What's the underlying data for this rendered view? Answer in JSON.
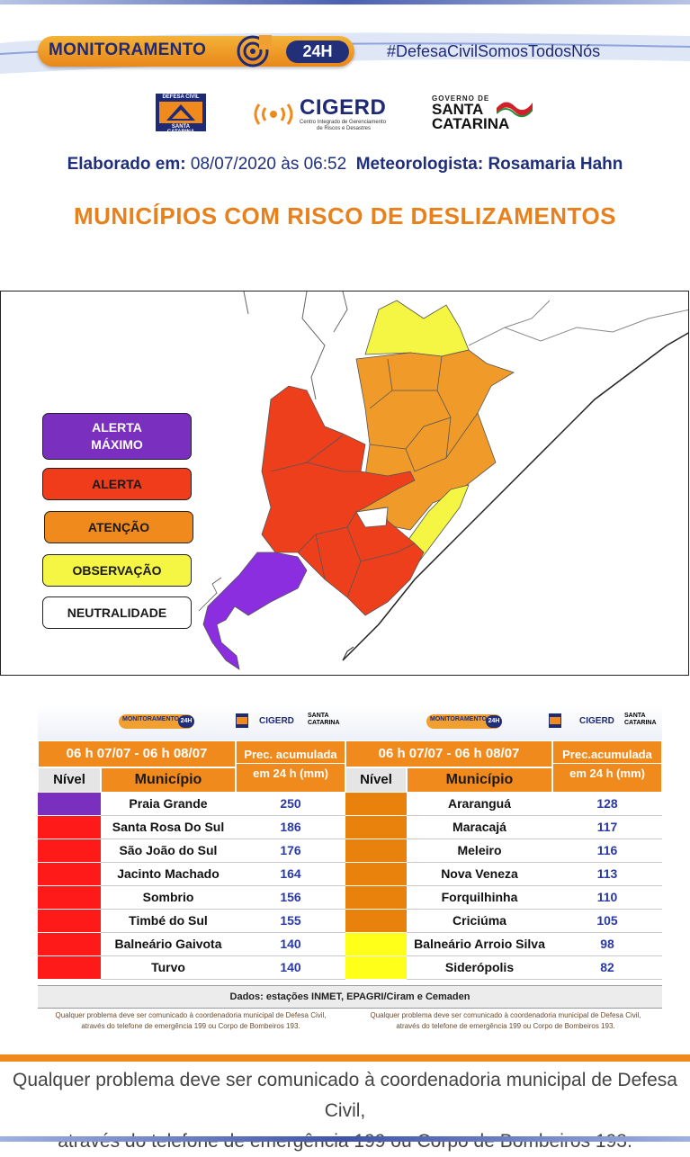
{
  "banner": {
    "monitoramento": "MONITORAMENTO",
    "hours": "24H",
    "hashtag": "#DefesaCivilSomosTodosNós"
  },
  "logos": {
    "defesa_civil_top": "DEFESA CIVIL",
    "defesa_civil_bottom": "SANTA CATARINA",
    "cigerd": "CIGERD",
    "cigerd_sub1": "Centro Integrado de Gerenciamento",
    "cigerd_sub2": "de Riscos e Desastres",
    "governo_de": "GOVERNO DE",
    "santa": "SANTA",
    "catarina": "CATARINA"
  },
  "meta": {
    "elaborado_label": "Elaborado em:",
    "elaborado_value": "08/07/2020 às 06:52",
    "meteorologista_label": "Meteorologista:",
    "meteorologista_value": "Rosamaria Hahn"
  },
  "title": "MUNICÍPIOS COM RISCO DE DESLIZAMENTOS",
  "legend": [
    {
      "line1": "ALERTA",
      "line2": "MÁXIMO",
      "color": "#7a2fbf",
      "text_color": "#ffffff"
    },
    {
      "line1": "ALERTA",
      "line2": "",
      "color": "#f03c1a",
      "text_color": "#1a1a1a"
    },
    {
      "line1": "ATENÇÃO",
      "line2": "",
      "color": "#f08a1c",
      "text_color": "#1a1a1a"
    },
    {
      "line1": "OBSERVAÇÃO",
      "line2": "",
      "color": "#f5f543",
      "text_color": "#1a1a1a"
    },
    {
      "line1": "NEUTRALIDADE",
      "line2": "",
      "color": "#ffffff",
      "text_color": "#1a1a1a"
    }
  ],
  "table": {
    "mini_monitoramento": "MONITORAMENTO",
    "mini_24h": "24H",
    "mini_cigerd": "CIGERD",
    "mini_santa": "SANTA",
    "mini_catarina": "CATARINA",
    "period": "06 h 07/07 - 06 h 08/07",
    "prec_left_1": "Prec. acumulada",
    "prec_right_1": "Prec.acumulada",
    "prec_2": "em 24 h (mm)",
    "col_nivel": "Nível",
    "col_municipio": "Município",
    "left_rows": [
      {
        "level": "#7a2fbf",
        "name": "Praia Grande",
        "value": "250"
      },
      {
        "level": "#ff1a1a",
        "name": "Santa Rosa Do Sul",
        "value": "186"
      },
      {
        "level": "#ff1a1a",
        "name": "São João do Sul",
        "value": "176"
      },
      {
        "level": "#ff1a1a",
        "name": "Jacinto Machado",
        "value": "164"
      },
      {
        "level": "#ff1a1a",
        "name": "Sombrio",
        "value": "156"
      },
      {
        "level": "#ff1a1a",
        "name": "Timbé do Sul",
        "value": "155"
      },
      {
        "level": "#ff1a1a",
        "name": "Balneário Gaivota",
        "value": "140"
      },
      {
        "level": "#ff1a1a",
        "name": "Turvo",
        "value": "140"
      }
    ],
    "right_rows": [
      {
        "level": "#e8820c",
        "name": "Araranguá",
        "value": "128"
      },
      {
        "level": "#e8820c",
        "name": "Maracajá",
        "value": "117"
      },
      {
        "level": "#e8820c",
        "name": "Meleiro",
        "value": "116"
      },
      {
        "level": "#e8820c",
        "name": "Nova Veneza",
        "value": "113"
      },
      {
        "level": "#e8820c",
        "name": "Forquilhinha",
        "value": "110"
      },
      {
        "level": "#e8820c",
        "name": "Criciúma",
        "value": "105"
      },
      {
        "level": "#ffff1a",
        "name": "Balneário Arroio Silva",
        "value": "98"
      },
      {
        "level": "#ffff1a",
        "name": "Siderópolis",
        "value": "82"
      }
    ],
    "dados": "Dados: estações INMET, EPAGRI/Ciram e Cemaden",
    "note_1": "Qualquer problema deve ser comunicado à coordenadoria municipal de Defesa Civil,",
    "note_2": "através do telefone de emergência 199 ou Corpo de Bombeiros 193."
  },
  "footer": {
    "line1": "Qualquer problema deve ser comunicado à coordenadoria municipal de Defesa Civil,",
    "line2": "através do telefone de emergência 199 ou Corpo de Bombeiros 193."
  }
}
